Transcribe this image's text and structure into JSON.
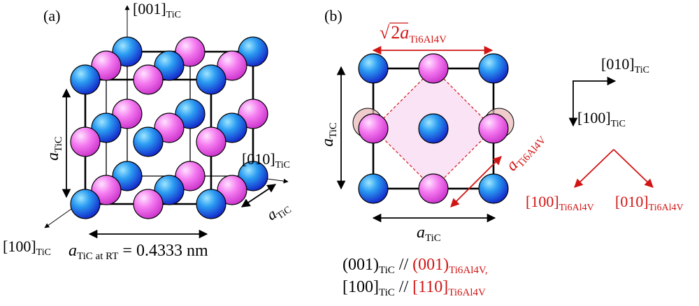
{
  "colors": {
    "ink": "#000000",
    "accent_red": "#d21414",
    "atom_blue": "#1f78e8",
    "atom_pink": "#f26cf0",
    "square_fill": "#fbe3f6",
    "ghost_atom": "#e9b7b7"
  },
  "panel_a": {
    "label": "(a)",
    "axis_001": {
      "text": "[001]",
      "sub": "TiC"
    },
    "axis_010": {
      "text": "[010]",
      "sub": "TiC"
    },
    "axis_100": {
      "text": "[100]",
      "sub": "TiC"
    },
    "dim_left": {
      "sym": "a",
      "sub": "TiC"
    },
    "dim_depth": {
      "sym": "a",
      "sub": "TiC"
    },
    "lattice_param": {
      "sym": "a",
      "sub": "TiC at RT",
      "value": " = 0.4333 nm"
    }
  },
  "panel_b": {
    "label": "(b)",
    "top_dim": {
      "root": "√",
      "coef": "2",
      "sym": "a",
      "sub": "Ti6Al4V"
    },
    "left_dim": {
      "sym": "a",
      "sub": "TiC"
    },
    "bottom_dim": {
      "sym": "a",
      "sub": "TiC"
    },
    "diag_dim": {
      "sym": "a",
      "sub": "Ti6Al4V"
    },
    "dir_010": {
      "text": "[010]",
      "sub": "TiC"
    },
    "dir_100": {
      "text": "[100]",
      "sub": "TiC"
    },
    "red_100": {
      "text": "[100]",
      "sub": "Ti6Al4V"
    },
    "red_010": {
      "text": "[010]",
      "sub": "Ti6Al4V"
    },
    "relation_1": {
      "a": "(001)",
      "a_sub": "TiC",
      "sep": " // ",
      "b": "(001)",
      "b_sub": "Ti6Al4V,"
    },
    "relation_2": {
      "a": "[100]",
      "a_sub": "TiC",
      "sep": " // ",
      "b": "[110]",
      "b_sub": "Ti6Al4V"
    }
  }
}
